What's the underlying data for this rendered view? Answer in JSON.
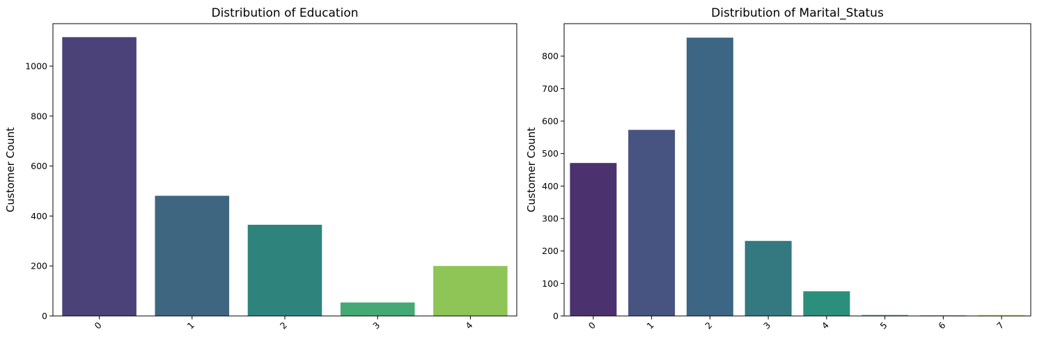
{
  "chart_data": [
    {
      "type": "bar",
      "title": "Distribution of Education",
      "xlabel": "",
      "ylabel": "Customer Count",
      "categories": [
        "0",
        "1",
        "2",
        "3",
        "4"
      ],
      "values": [
        1116,
        481,
        365,
        54,
        200
      ],
      "colors": [
        "#4a4278",
        "#3e6680",
        "#2f837d",
        "#44a974",
        "#8fc556"
      ],
      "ylim": [
        0,
        1170
      ],
      "yticks": [
        "0",
        "200",
        "400",
        "600",
        "800",
        "1000"
      ],
      "grid": false
    },
    {
      "type": "bar",
      "title": "Distribution of Marital_Status",
      "xlabel": "",
      "ylabel": "Customer Count",
      "categories": [
        "0",
        "1",
        "2",
        "3",
        "4",
        "5",
        "6",
        "7"
      ],
      "values": [
        471,
        573,
        857,
        231,
        76,
        3,
        2,
        3
      ],
      "colors": [
        "#4b316d",
        "#475380",
        "#3c6683",
        "#347880",
        "#2c8f7b",
        "#4aab73",
        "#84c05a",
        "#d9e03f"
      ],
      "ylim": [
        0,
        900
      ],
      "yticks": [
        "0",
        "100",
        "200",
        "300",
        "400",
        "500",
        "600",
        "700",
        "800"
      ],
      "grid": false
    }
  ]
}
